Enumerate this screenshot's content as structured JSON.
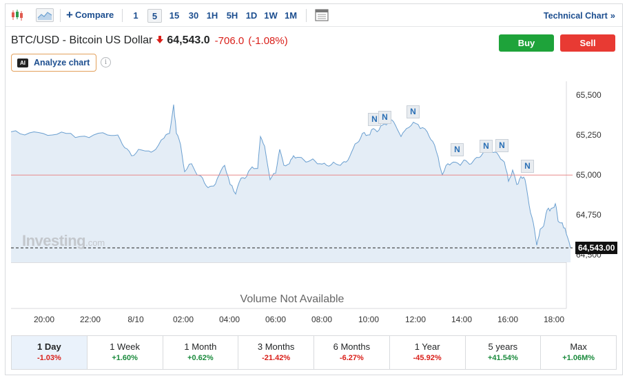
{
  "toolbar": {
    "candles_icon": "candlestick-icon",
    "area_icon": "area-chart-icon",
    "compare_label": "Compare",
    "timeframes": [
      "1",
      "5",
      "15",
      "30",
      "1H",
      "5H",
      "1D",
      "1W",
      "1M"
    ],
    "active_timeframe": "5",
    "calendar_icon": "calendar-icon",
    "technical_chart_label": "Technical Chart",
    "technical_chart_chevron": "»"
  },
  "header": {
    "pair_name": "BTC/USD - Bitcoin US Dollar",
    "direction_icon": "down-arrow-icon",
    "price": "64,543.0",
    "change": "-706.0",
    "change_pct": "(-1.08%)",
    "buy_label": "Buy",
    "sell_label": "Sell",
    "analyze_badge": "AI",
    "analyze_label": "Analyze chart",
    "info_icon": "i"
  },
  "chart": {
    "y_ticks": [
      "65,500",
      "65,250",
      "65,000",
      "64,750",
      "64,500"
    ],
    "x_ticks": [
      "20:00",
      "22:00",
      "8/10",
      "02:00",
      "04:00",
      "06:00",
      "08:00",
      "10:00",
      "12:00",
      "14:00",
      "16:00",
      "18:00"
    ],
    "last_price_label": "64,543.00",
    "previous_close": 64999,
    "news_markers": [
      "N",
      "N",
      "N",
      "N",
      "N",
      "N",
      "N"
    ],
    "watermark_brand": "Investing",
    "watermark_domain": ".com",
    "volume_message": "Volume Not Available",
    "colors": {
      "line": "#6a9fd0",
      "fill": "#e4edf6",
      "prev_close": "#e88a8a"
    }
  },
  "periods": [
    {
      "label": "1 Day",
      "value": "-1.03%",
      "trend": "neg",
      "active": true
    },
    {
      "label": "1 Week",
      "value": "+1.60%",
      "trend": "pos",
      "active": false
    },
    {
      "label": "1 Month",
      "value": "+0.62%",
      "trend": "pos",
      "active": false
    },
    {
      "label": "3 Months",
      "value": "-21.42%",
      "trend": "neg",
      "active": false
    },
    {
      "label": "6 Months",
      "value": "-6.27%",
      "trend": "neg",
      "active": false
    },
    {
      "label": "1 Year",
      "value": "-45.92%",
      "trend": "neg",
      "active": false
    },
    {
      "label": "5 years",
      "value": "+41.54%",
      "trend": "pos",
      "active": false
    },
    {
      "label": "Max",
      "value": "+1.06M%",
      "trend": "pos",
      "active": false
    }
  ]
}
